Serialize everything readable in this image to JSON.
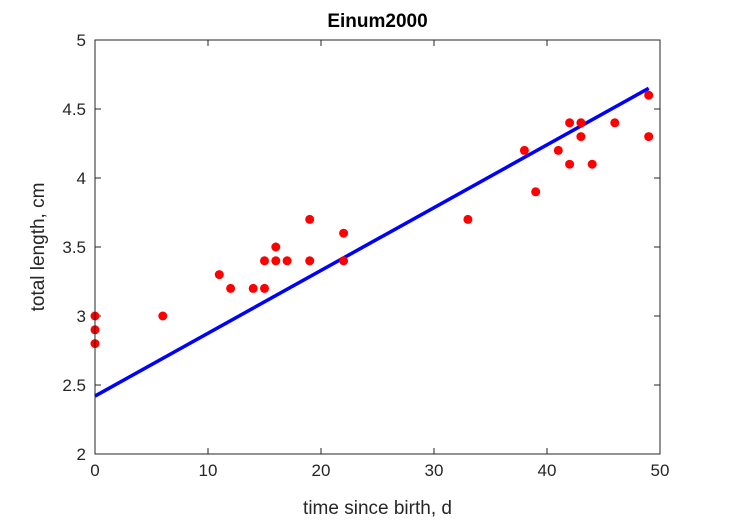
{
  "chart_data": {
    "type": "scatter",
    "title": "Einum2000",
    "xlabel": "time since birth, d",
    "ylabel": "total length, cm",
    "xlim": [
      0,
      50
    ],
    "ylim": [
      2,
      5
    ],
    "xticks": [
      0,
      10,
      20,
      30,
      40,
      50
    ],
    "yticks": [
      2,
      2.5,
      3,
      3.5,
      4,
      4.5,
      5
    ],
    "xtick_labels": [
      "0",
      "10",
      "20",
      "30",
      "40",
      "50"
    ],
    "ytick_labels": [
      "2",
      "2.5",
      "3",
      "3.5",
      "4",
      "4.5",
      "5"
    ],
    "grid": false,
    "series": [
      {
        "type": "scatter",
        "color": "#ff0000",
        "points": [
          [
            0,
            3.0
          ],
          [
            0,
            2.9
          ],
          [
            0,
            2.8
          ],
          [
            6,
            3.0
          ],
          [
            11,
            3.3
          ],
          [
            12,
            3.2
          ],
          [
            14,
            3.2
          ],
          [
            15,
            3.2
          ],
          [
            15,
            3.4
          ],
          [
            16,
            3.5
          ],
          [
            16,
            3.4
          ],
          [
            17,
            3.4
          ],
          [
            19,
            3.7
          ],
          [
            19,
            3.4
          ],
          [
            22,
            3.6
          ],
          [
            22,
            3.4
          ],
          [
            33,
            3.7
          ],
          [
            38,
            4.2
          ],
          [
            39,
            3.9
          ],
          [
            41,
            4.2
          ],
          [
            42,
            4.4
          ],
          [
            42,
            4.1
          ],
          [
            43,
            4.4
          ],
          [
            43,
            4.3
          ],
          [
            44,
            4.1
          ],
          [
            46,
            4.4
          ],
          [
            49,
            4.6
          ],
          [
            49,
            4.3
          ]
        ]
      },
      {
        "type": "line",
        "color": "#0000ff",
        "points": [
          [
            0,
            2.42
          ],
          [
            49,
            4.65
          ]
        ]
      }
    ]
  }
}
